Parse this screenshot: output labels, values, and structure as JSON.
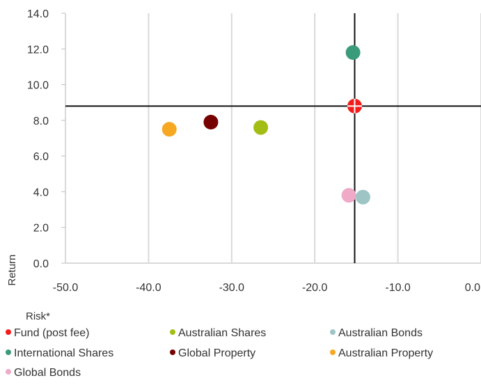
{
  "chart_data": {
    "type": "scatter",
    "title": "",
    "xlabel": "Risk*",
    "ylabel": "Return",
    "xlim": [
      -50,
      0
    ],
    "ylim": [
      0,
      14
    ],
    "x_ticks": [
      "-50.0",
      "-40.0",
      "-30.0",
      "-20.0",
      "-10.0",
      "0.0"
    ],
    "y_ticks": [
      "0.0",
      "2.0",
      "4.0",
      "6.0",
      "8.0",
      "10.0",
      "12.0",
      "14.0"
    ],
    "grid": "vertical",
    "legend_position": "bottom",
    "crosshair": {
      "x": -15.2,
      "y": 8.8
    },
    "series": [
      {
        "name": "Fund (post fee)",
        "color": "#f21c1c",
        "marker": "crosshair-circle",
        "points": [
          {
            "x": -15.2,
            "y": 8.8
          }
        ]
      },
      {
        "name": "Australian Shares",
        "color": "#a3bd14",
        "points": [
          {
            "x": -26.5,
            "y": 7.6
          }
        ]
      },
      {
        "name": "Australian Bonds",
        "color": "#9ec4c6",
        "points": [
          {
            "x": -14.2,
            "y": 3.7
          }
        ]
      },
      {
        "name": "International Shares",
        "color": "#3a9b7a",
        "points": [
          {
            "x": -15.4,
            "y": 11.8
          }
        ]
      },
      {
        "name": "Global Property",
        "color": "#760000",
        "points": [
          {
            "x": -32.5,
            "y": 7.9
          }
        ]
      },
      {
        "name": "Australian Property",
        "color": "#f6a822",
        "points": [
          {
            "x": -37.5,
            "y": 7.5
          }
        ]
      },
      {
        "name": "Global Bonds",
        "color": "#eeaac6",
        "points": [
          {
            "x": -15.9,
            "y": 3.8
          }
        ]
      }
    ]
  }
}
